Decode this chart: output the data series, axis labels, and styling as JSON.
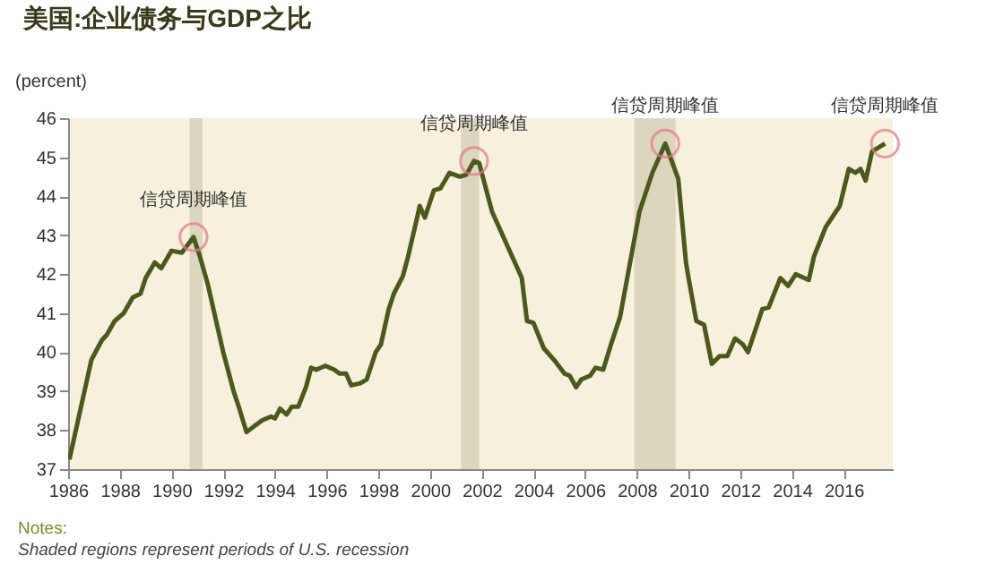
{
  "chart_data": {
    "type": "line",
    "title": "美国:企业债务与GDP之比",
    "ylabel": "(percent)",
    "x": [
      1986.05,
      1986.9,
      1987.3,
      1987.5,
      1987.8,
      1988.15,
      1988.5,
      1988.8,
      1989.0,
      1989.35,
      1989.6,
      1990.0,
      1990.4,
      1990.85,
      1991.1,
      1991.4,
      1992.0,
      1992.4,
      1992.6,
      1992.9,
      1993.2,
      1993.5,
      1993.85,
      1994.0,
      1994.2,
      1994.45,
      1994.65,
      1994.9,
      1995.2,
      1995.4,
      1995.6,
      1995.95,
      1996.3,
      1996.5,
      1996.75,
      1996.95,
      1997.3,
      1997.55,
      1997.9,
      1998.1,
      1998.4,
      1998.6,
      1998.95,
      1999.15,
      1999.5,
      1999.6,
      1999.8,
      2000.15,
      2000.4,
      2000.75,
      2001.15,
      2001.4,
      2001.7,
      2001.9,
      2002.4,
      2003.55,
      2003.75,
      2004.0,
      2004.4,
      2004.8,
      2005.2,
      2005.4,
      2005.65,
      2005.85,
      2006.2,
      2006.4,
      2006.7,
      2007.0,
      2007.35,
      2008.1,
      2008.6,
      2009.1,
      2009.6,
      2009.9,
      2010.0,
      2010.3,
      2010.6,
      2010.9,
      2011.2,
      2011.5,
      2011.8,
      2012.1,
      2012.3,
      2012.85,
      2013.1,
      2013.55,
      2013.85,
      2014.15,
      2014.65,
      2014.85,
      2015.3,
      2015.85,
      2016.2,
      2016.45,
      2016.65,
      2016.85,
      2017.1,
      2017.6
    ],
    "series": [
      {
        "color": "#4b5a1c",
        "values": [
          37.25,
          39.8,
          40.3,
          40.45,
          40.8,
          41.0,
          41.4,
          41.5,
          41.9,
          42.3,
          42.15,
          42.6,
          42.55,
          42.95,
          42.45,
          41.75,
          40.0,
          39.0,
          38.6,
          37.95,
          38.1,
          38.25,
          38.35,
          38.3,
          38.55,
          38.4,
          38.6,
          38.6,
          39.1,
          39.6,
          39.55,
          39.65,
          39.55,
          39.45,
          39.45,
          39.15,
          39.2,
          39.3,
          40.0,
          40.2,
          41.1,
          41.5,
          41.95,
          42.45,
          43.45,
          43.75,
          43.45,
          44.15,
          44.2,
          44.6,
          44.5,
          44.55,
          44.9,
          44.85,
          43.6,
          41.9,
          40.8,
          40.75,
          40.1,
          39.8,
          39.45,
          39.4,
          39.1,
          39.3,
          39.4,
          39.6,
          39.55,
          40.2,
          40.9,
          43.6,
          44.6,
          45.35,
          44.45,
          42.3,
          41.9,
          40.8,
          40.7,
          39.7,
          39.9,
          39.9,
          40.35,
          40.2,
          40.0,
          41.1,
          41.15,
          41.9,
          41.7,
          42.0,
          41.85,
          42.45,
          43.2,
          43.75,
          44.7,
          44.6,
          44.7,
          44.4,
          45.15,
          45.35
        ]
      }
    ],
    "xlim": [
      1986,
      2017.9
    ],
    "xticks": [
      1986,
      1988,
      1990,
      1992,
      1994,
      1996,
      1998,
      2000,
      2002,
      2004,
      2006,
      2008,
      2010,
      2012,
      2014,
      2016
    ],
    "ylim": [
      37,
      46
    ],
    "yticks": [
      37,
      38,
      39,
      40,
      41,
      42,
      43,
      44,
      45,
      46
    ],
    "grid": false,
    "bands": [
      {
        "axis": "x",
        "from": 1990.7,
        "to": 1991.2,
        "color": "#ddd6bf"
      },
      {
        "axis": "x",
        "from": 2001.2,
        "to": 2001.9,
        "color": "#ddd6bf"
      },
      {
        "axis": "x",
        "from": 2007.9,
        "to": 2009.5,
        "color": "#ddd6bf"
      }
    ],
    "annotations": [
      {
        "text": "信贷周期峰值",
        "x": 1990.85,
        "y": 42.95
      },
      {
        "text": "信贷周期峰值",
        "x": 2001.7,
        "y": 44.9
      },
      {
        "text": "信贷周期峰值",
        "x": 2009.1,
        "y": 45.35
      },
      {
        "text": "信贷周期峰值",
        "x": 2017.6,
        "y": 45.35
      },
      "Notes:",
      "Shaded regions represent periods of U.S. recession"
    ]
  }
}
